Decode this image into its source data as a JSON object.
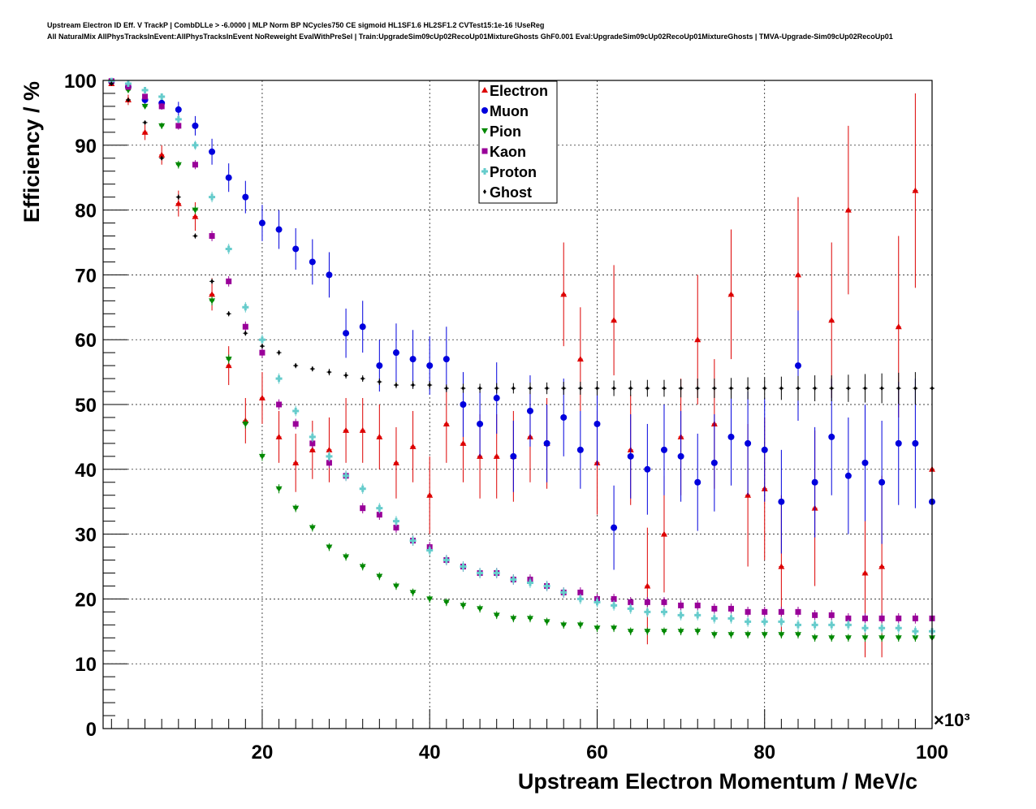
{
  "title_lines": [
    "Upstream Electron ID Eff. V TrackP | CombDLLe > -6.0000 | MLP Norm BP NCycles750 CE sigmoid HL1SF1.6 HL2SF1.2 CVTest15:1e-16 !UseReg",
    "All NaturalMix AllPhysTracksInEvent:AllPhysTracksInEvent NoReweight EvalWithPreSel | Train:UpgradeSim09cUp02RecoUp01MixtureGhosts GhF0.001 Eval:UpgradeSim09cUp02RecoUp01MixtureGhosts | TMVA-Upgrade-Sim09cUp02RecoUp01"
  ],
  "chart_data": {
    "type": "scatter",
    "xlabel": "Upstream Electron Momentum / MeV/c",
    "ylabel": "Efficiency / %",
    "x_multiplier": "×10³",
    "xlim": [
      1000,
      100000
    ],
    "ylim": [
      0,
      100
    ],
    "x_ticks": [
      20000,
      40000,
      60000,
      80000,
      100000
    ],
    "x_tick_labels": [
      "20",
      "40",
      "60",
      "80",
      "100"
    ],
    "y_ticks": [
      0,
      10,
      20,
      30,
      40,
      50,
      60,
      70,
      80,
      90,
      100
    ],
    "y_tick_labels": [
      "0",
      "10",
      "20",
      "30",
      "40",
      "50",
      "60",
      "70",
      "80",
      "90",
      "100"
    ],
    "grid": true,
    "legend_position": "top-center",
    "series": [
      {
        "name": "Electron",
        "color": "#dd0000",
        "marker": "triangle-up",
        "x": [
          2000,
          4000,
          6000,
          8000,
          10000,
          12000,
          14000,
          16000,
          18000,
          20000,
          22000,
          24000,
          26000,
          28000,
          30000,
          32000,
          34000,
          36000,
          38000,
          40000,
          42000,
          44000,
          46000,
          48000,
          50000,
          52000,
          54000,
          56000,
          58000,
          60000,
          62000,
          64000,
          66000,
          68000,
          70000,
          72000,
          74000,
          76000,
          78000,
          80000,
          82000,
          84000,
          86000,
          88000,
          90000,
          92000,
          94000,
          96000,
          98000,
          100000
        ],
        "y": [
          99.5,
          97,
          92,
          88.5,
          81,
          79,
          67,
          56,
          47.5,
          51,
          45,
          41,
          43,
          43,
          46,
          46,
          45,
          41,
          43.5,
          36,
          47,
          44,
          42,
          42,
          42,
          45,
          44,
          67,
          57,
          41,
          63,
          43,
          22,
          30,
          45,
          60,
          47,
          67,
          36,
          37,
          25,
          70,
          34,
          63,
          80,
          24,
          25,
          62,
          83,
          40
        ],
        "err": [
          0.3,
          0.8,
          1.2,
          1.5,
          2,
          2.2,
          2.5,
          3,
          3.5,
          4,
          4,
          4.5,
          4.5,
          5,
          5,
          5,
          5,
          5.5,
          5.5,
          6,
          6,
          6,
          6.5,
          6.5,
          7,
          7,
          7,
          8,
          8,
          8,
          8.5,
          8.5,
          9,
          9,
          9,
          10,
          10,
          10,
          11,
          11,
          11,
          12,
          12,
          12,
          13,
          13,
          14,
          14,
          15,
          15
        ]
      },
      {
        "name": "Muon",
        "color": "#0000dd",
        "marker": "circle",
        "x": [
          2000,
          4000,
          6000,
          8000,
          10000,
          12000,
          14000,
          16000,
          18000,
          20000,
          22000,
          24000,
          26000,
          28000,
          30000,
          32000,
          34000,
          36000,
          38000,
          40000,
          42000,
          44000,
          46000,
          48000,
          50000,
          52000,
          54000,
          56000,
          58000,
          60000,
          62000,
          64000,
          66000,
          68000,
          70000,
          72000,
          74000,
          76000,
          78000,
          80000,
          82000,
          84000,
          86000,
          88000,
          90000,
          92000,
          94000,
          96000,
          98000,
          100000
        ],
        "y": [
          99.8,
          99,
          97,
          96.5,
          95.5,
          93,
          89,
          85,
          82,
          78,
          77,
          74,
          72,
          70,
          61,
          62,
          56,
          58,
          57,
          56,
          57,
          50,
          47,
          51,
          42,
          49,
          44,
          48,
          43,
          47,
          31,
          42,
          40,
          43,
          42,
          38,
          41,
          45,
          44,
          43,
          35,
          56,
          38,
          45,
          39,
          41,
          38,
          44,
          44,
          35
        ],
        "err": [
          0.2,
          0.5,
          0.8,
          1,
          1.2,
          1.5,
          2,
          2.2,
          2.5,
          2.8,
          3,
          3.2,
          3.5,
          3.5,
          3.8,
          4,
          4,
          4.5,
          4.5,
          4.5,
          5,
          5,
          5,
          5.5,
          5.5,
          5.5,
          6,
          6,
          6,
          6.5,
          6.5,
          6.5,
          7,
          7,
          7,
          7.5,
          7.5,
          7.5,
          8,
          8,
          8,
          8.5,
          8.5,
          9,
          9,
          9,
          9.5,
          9.5,
          10,
          10
        ]
      },
      {
        "name": "Pion",
        "color": "#008800",
        "marker": "triangle-down",
        "x": [
          2000,
          4000,
          6000,
          8000,
          10000,
          12000,
          14000,
          16000,
          18000,
          20000,
          22000,
          24000,
          26000,
          28000,
          30000,
          32000,
          34000,
          36000,
          38000,
          40000,
          42000,
          44000,
          46000,
          48000,
          50000,
          52000,
          54000,
          56000,
          58000,
          60000,
          62000,
          64000,
          66000,
          68000,
          70000,
          72000,
          74000,
          76000,
          78000,
          80000,
          82000,
          84000,
          86000,
          88000,
          90000,
          92000,
          94000,
          96000,
          98000,
          100000
        ],
        "y": [
          99.8,
          98.5,
          96,
          93,
          87,
          80,
          66,
          57,
          47,
          42,
          37,
          34,
          31,
          28,
          26.5,
          25,
          23.5,
          22,
          21,
          20,
          19.5,
          19,
          18.5,
          17.5,
          17,
          17,
          16.5,
          16,
          16,
          15.5,
          15.5,
          15,
          15,
          15,
          15,
          15,
          14.5,
          14.5,
          14.5,
          14.5,
          14.5,
          14.5,
          14,
          14,
          14,
          14,
          14,
          14,
          14,
          14
        ],
        "err": [
          0.2,
          0.3,
          0.4,
          0.5,
          0.6,
          0.6,
          0.7,
          0.7,
          0.7,
          0.7,
          0.7,
          0.6,
          0.6,
          0.6,
          0.6,
          0.6,
          0.6,
          0.6,
          0.6,
          0.6,
          0.6,
          0.6,
          0.6,
          0.6,
          0.6,
          0.6,
          0.6,
          0.6,
          0.6,
          0.6,
          0.6,
          0.6,
          0.6,
          0.6,
          0.6,
          0.6,
          0.6,
          0.6,
          0.6,
          0.6,
          0.6,
          0.6,
          0.6,
          0.6,
          0.6,
          0.6,
          0.6,
          0.6,
          0.6,
          0.6
        ]
      },
      {
        "name": "Kaon",
        "color": "#990099",
        "marker": "square",
        "x": [
          2000,
          4000,
          6000,
          8000,
          10000,
          12000,
          14000,
          16000,
          18000,
          20000,
          22000,
          24000,
          26000,
          28000,
          30000,
          32000,
          34000,
          36000,
          38000,
          40000,
          42000,
          44000,
          46000,
          48000,
          50000,
          52000,
          54000,
          56000,
          58000,
          60000,
          62000,
          64000,
          66000,
          68000,
          70000,
          72000,
          74000,
          76000,
          78000,
          80000,
          82000,
          84000,
          86000,
          88000,
          90000,
          92000,
          94000,
          96000,
          98000,
          100000
        ],
        "y": [
          99.9,
          99,
          97.5,
          96,
          93,
          87,
          76,
          69,
          62,
          58,
          50,
          47,
          44,
          41,
          39,
          34,
          33,
          31,
          29,
          28,
          26,
          25,
          24,
          24,
          23,
          23,
          22,
          21,
          21,
          20,
          20,
          19.5,
          19.5,
          19.5,
          19,
          19,
          18.5,
          18.5,
          18,
          18,
          18,
          18,
          17.5,
          17.5,
          17,
          17,
          17,
          17,
          17,
          17
        ],
        "err": [
          0.2,
          0.3,
          0.4,
          0.5,
          0.6,
          0.7,
          0.8,
          0.8,
          0.8,
          0.8,
          0.8,
          0.8,
          0.8,
          0.8,
          0.8,
          0.8,
          0.8,
          0.8,
          0.8,
          0.8,
          0.8,
          0.8,
          0.8,
          0.8,
          0.8,
          0.8,
          0.8,
          0.8,
          0.8,
          0.8,
          0.8,
          0.8,
          0.8,
          0.8,
          0.8,
          0.8,
          0.8,
          0.8,
          0.8,
          0.8,
          0.8,
          0.8,
          0.8,
          0.8,
          0.8,
          0.8,
          0.8,
          0.8,
          0.8,
          0.8
        ]
      },
      {
        "name": "Proton",
        "color": "#66cccc",
        "marker": "cross",
        "x": [
          2000,
          4000,
          6000,
          8000,
          10000,
          12000,
          14000,
          16000,
          18000,
          20000,
          22000,
          24000,
          26000,
          28000,
          30000,
          32000,
          34000,
          36000,
          38000,
          40000,
          42000,
          44000,
          46000,
          48000,
          50000,
          52000,
          54000,
          56000,
          58000,
          60000,
          62000,
          64000,
          66000,
          68000,
          70000,
          72000,
          74000,
          76000,
          78000,
          80000,
          82000,
          84000,
          86000,
          88000,
          90000,
          92000,
          94000,
          96000,
          98000,
          100000
        ],
        "y": [
          99.9,
          99.5,
          98.5,
          97.5,
          94,
          90,
          82,
          74,
          65,
          60,
          54,
          49,
          45,
          42,
          39,
          37,
          34,
          32,
          29,
          27.5,
          26,
          25,
          24,
          24,
          23,
          22.5,
          22,
          21,
          20,
          19.5,
          19,
          18.5,
          18,
          18,
          17.5,
          17.5,
          17,
          17,
          16.5,
          16.5,
          16.5,
          16,
          16,
          16,
          16,
          15.5,
          15.5,
          15.5,
          15,
          15
        ],
        "err": [
          0.2,
          0.3,
          0.4,
          0.5,
          0.6,
          0.7,
          0.8,
          0.8,
          0.8,
          0.8,
          0.8,
          0.8,
          0.8,
          0.8,
          0.8,
          0.8,
          0.8,
          0.8,
          0.8,
          0.8,
          0.8,
          0.8,
          0.8,
          0.8,
          0.8,
          0.8,
          0.8,
          0.8,
          0.8,
          0.8,
          0.8,
          0.8,
          0.8,
          0.8,
          0.8,
          0.8,
          0.8,
          0.8,
          0.8,
          0.8,
          0.8,
          0.8,
          0.8,
          0.8,
          0.8,
          0.8,
          0.8,
          0.8,
          0.8,
          0.8
        ]
      },
      {
        "name": "Ghost",
        "color": "#000000",
        "marker": "diamond",
        "x": [
          2000,
          4000,
          6000,
          8000,
          10000,
          12000,
          14000,
          16000,
          18000,
          20000,
          22000,
          24000,
          26000,
          28000,
          30000,
          32000,
          34000,
          36000,
          38000,
          40000,
          42000,
          44000,
          46000,
          48000,
          50000,
          52000,
          54000,
          56000,
          58000,
          60000,
          62000,
          64000,
          66000,
          68000,
          70000,
          72000,
          74000,
          76000,
          78000,
          80000,
          82000,
          84000,
          86000,
          88000,
          90000,
          92000,
          94000,
          96000,
          98000,
          100000
        ],
        "y": [
          99.5,
          97,
          93.5,
          88,
          82,
          76,
          69,
          64,
          61,
          59,
          58,
          56,
          55.5,
          55,
          54.5,
          54,
          53.5,
          53,
          53,
          53,
          52.5,
          52.5,
          52.5,
          52.5,
          52.5,
          52.5,
          52.5,
          52.5,
          52.5,
          52.5,
          52.5,
          52.5,
          52.5,
          52.5,
          52.5,
          52.5,
          52.5,
          52.5,
          52.5,
          52.5,
          52.5,
          52.5,
          52.5,
          52.5,
          52.5,
          52.5,
          52.5,
          52.5,
          52.5,
          52.5
        ],
        "err": [
          0.1,
          0.2,
          0.3,
          0.3,
          0.4,
          0.4,
          0.4,
          0.4,
          0.4,
          0.4,
          0.4,
          0.4,
          0.4,
          0.5,
          0.5,
          0.5,
          0.5,
          0.5,
          0.6,
          0.6,
          0.6,
          0.7,
          0.7,
          0.8,
          0.8,
          0.9,
          0.9,
          1,
          1,
          1.1,
          1.2,
          1.2,
          1.3,
          1.3,
          1.4,
          1.5,
          1.5,
          1.6,
          1.7,
          1.7,
          1.8,
          1.9,
          2,
          2,
          2.1,
          2.2,
          2.3,
          2.4,
          2.5,
          2.5
        ]
      }
    ]
  }
}
